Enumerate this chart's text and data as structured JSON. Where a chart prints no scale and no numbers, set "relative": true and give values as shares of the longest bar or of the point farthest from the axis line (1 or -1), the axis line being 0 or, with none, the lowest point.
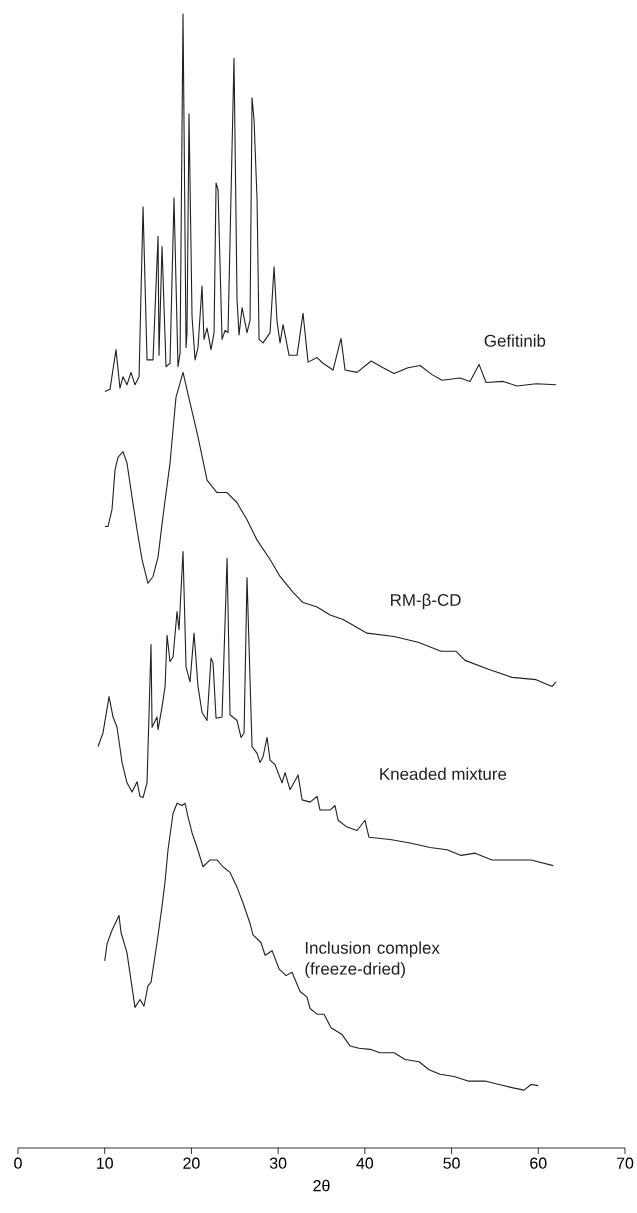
{
  "chart_data": {
    "type": "line",
    "relative": true,
    "xlabel": "2θ",
    "xlim": [
      0,
      70
    ],
    "xticks": [
      0,
      10,
      20,
      30,
      40,
      50,
      60,
      70
    ],
    "tick_labels": "x",
    "series": [
      {
        "name": "Gefitinib",
        "color": "#231f20",
        "x": [
          10.03,
          10.61,
          11.3,
          11.76,
          12.11,
          12.57,
          13.03,
          13.49,
          13.96,
          14.42,
          14.88,
          15.57,
          16.15,
          16.26,
          16.61,
          17.07,
          17.53,
          17.99,
          18.45,
          18.69,
          19.03,
          19.38,
          19.49,
          19.72,
          20.07,
          20.42,
          20.76,
          21.22,
          21.45,
          21.8,
          22.26,
          22.61,
          22.84,
          23.07,
          23.53,
          23.88,
          24.22,
          24.91,
          25.26,
          25.49,
          25.84,
          26.41,
          26.76,
          26.99,
          27.22,
          27.57,
          27.8,
          28.26,
          29.07,
          29.53,
          29.87,
          30.22,
          30.57,
          31.26,
          32.18,
          32.87,
          33.45,
          34.49,
          35.18,
          36.33,
          37.25,
          37.72,
          39.1,
          40.72,
          42.1,
          43.37,
          44.98,
          46.37,
          47.75,
          48.9,
          50.98,
          52.13,
          53.17,
          53.98,
          55.94,
          57.55,
          59.75,
          62.05
        ],
        "values": [
          0.667,
          0.669,
          0.704,
          0.67,
          0.68,
          0.673,
          0.684,
          0.673,
          0.68,
          0.83,
          0.695,
          0.695,
          0.804,
          0.699,
          0.795,
          0.689,
          0.692,
          0.838,
          0.689,
          0.701,
          1.0,
          0.706,
          0.719,
          0.912,
          0.733,
          0.695,
          0.706,
          0.76,
          0.713,
          0.723,
          0.704,
          0.719,
          0.851,
          0.845,
          0.713,
          0.721,
          0.719,
          0.961,
          0.748,
          0.717,
          0.741,
          0.719,
          0.73,
          0.926,
          0.907,
          0.836,
          0.713,
          0.71,
          0.719,
          0.777,
          0.729,
          0.71,
          0.726,
          0.699,
          0.699,
          0.736,
          0.693,
          0.697,
          0.692,
          0.686,
          0.714,
          0.686,
          0.684,
          0.694,
          0.688,
          0.683,
          0.688,
          0.69,
          0.682,
          0.677,
          0.679,
          0.676,
          0.691,
          0.675,
          0.676,
          0.672,
          0.674,
          0.673
        ]
      },
      {
        "name": "RM-β-CD",
        "color": "#231f20",
        "x": [
          10.03,
          10.38,
          10.84,
          11.19,
          11.53,
          12.11,
          12.57,
          13.15,
          13.73,
          14.3,
          14.99,
          15.57,
          16.15,
          16.72,
          17.53,
          18.22,
          19.03,
          19.84,
          20.76,
          21.8,
          22.95,
          24.11,
          25.26,
          26.41,
          27.57,
          29.07,
          30.22,
          31.72,
          32.87,
          34.49,
          35.99,
          37.49,
          39.1,
          40.25,
          43.37,
          46.14,
          48.79,
          50.52,
          51.56,
          54.33,
          56.98,
          59.75,
          61.59,
          62.05
        ],
        "values": [
          0.548,
          0.548,
          0.563,
          0.598,
          0.609,
          0.614,
          0.604,
          0.574,
          0.545,
          0.519,
          0.498,
          0.504,
          0.521,
          0.557,
          0.604,
          0.662,
          0.684,
          0.657,
          0.627,
          0.589,
          0.578,
          0.578,
          0.569,
          0.554,
          0.536,
          0.519,
          0.504,
          0.49,
          0.481,
          0.477,
          0.47,
          0.466,
          0.459,
          0.454,
          0.451,
          0.446,
          0.438,
          0.438,
          0.43,
          0.422,
          0.415,
          0.413,
          0.407,
          0.411
        ]
      },
      {
        "name": "Kneaded mixture",
        "color": "#231f20",
        "x": [
          9.23,
          9.8,
          10.5,
          10.96,
          11.42,
          12.0,
          12.57,
          13.15,
          13.73,
          14.07,
          14.42,
          14.88,
          15.34,
          15.46,
          16.03,
          16.15,
          16.61,
          16.96,
          17.19,
          17.53,
          17.88,
          18.34,
          18.57,
          19.03,
          19.38,
          19.84,
          20.3,
          20.76,
          21.22,
          21.8,
          22.26,
          22.49,
          22.84,
          23.53,
          24.11,
          24.45,
          25.26,
          25.72,
          26.07,
          26.41,
          26.99,
          27.57,
          27.91,
          28.26,
          28.72,
          29.07,
          29.64,
          30.45,
          30.8,
          31.37,
          32.3,
          32.76,
          33.68,
          34.49,
          34.83,
          35.99,
          36.56,
          36.91,
          37.95,
          39.1,
          40.02,
          40.48,
          42.91,
          45.21,
          47.52,
          49.48,
          51.1,
          52.71,
          54.67,
          56.75,
          59.17,
          61.71
        ],
        "values": [
          0.354,
          0.366,
          0.398,
          0.38,
          0.371,
          0.34,
          0.322,
          0.314,
          0.323,
          0.31,
          0.309,
          0.322,
          0.444,
          0.371,
          0.38,
          0.369,
          0.389,
          0.407,
          0.452,
          0.429,
          0.433,
          0.473,
          0.457,
          0.526,
          0.424,
          0.411,
          0.454,
          0.407,
          0.384,
          0.377,
          0.432,
          0.428,
          0.379,
          0.38,
          0.52,
          0.382,
          0.377,
          0.362,
          0.366,
          0.503,
          0.354,
          0.348,
          0.34,
          0.345,
          0.362,
          0.342,
          0.338,
          0.322,
          0.331,
          0.316,
          0.329,
          0.307,
          0.305,
          0.31,
          0.298,
          0.298,
          0.302,
          0.289,
          0.283,
          0.28,
          0.289,
          0.274,
          0.272,
          0.269,
          0.265,
          0.263,
          0.258,
          0.26,
          0.254,
          0.254,
          0.254,
          0.249
        ]
      },
      {
        "name": "Inclusion complex (freeze-dried)",
        "color": "#231f20",
        "x": [
          10.0,
          10.27,
          10.84,
          11.65,
          11.88,
          12.57,
          13.49,
          14.07,
          14.53,
          14.99,
          15.34,
          16.03,
          16.61,
          16.96,
          17.3,
          17.88,
          18.34,
          18.92,
          19.26,
          19.61,
          20.07,
          20.65,
          21.34,
          22.15,
          22.95,
          23.64,
          24.45,
          25.26,
          25.95,
          26.76,
          27.1,
          28.03,
          28.49,
          29.3,
          30.1,
          30.91,
          31.6,
          32.53,
          33.33,
          33.68,
          34.49,
          35.29,
          36.1,
          37.37,
          38.29,
          39.33,
          40.6,
          41.75,
          43.37,
          44.64,
          46.25,
          47.4,
          48.67,
          50.29,
          51.9,
          53.86,
          55.48,
          57.09,
          58.36,
          59.17,
          60.0
        ],
        "values": [
          0.165,
          0.18,
          0.192,
          0.205,
          0.19,
          0.172,
          0.124,
          0.131,
          0.125,
          0.143,
          0.146,
          0.181,
          0.213,
          0.235,
          0.263,
          0.295,
          0.304,
          0.302,
          0.304,
          0.292,
          0.278,
          0.265,
          0.248,
          0.254,
          0.254,
          0.248,
          0.243,
          0.23,
          0.216,
          0.198,
          0.188,
          0.181,
          0.17,
          0.174,
          0.158,
          0.152,
          0.155,
          0.138,
          0.133,
          0.123,
          0.118,
          0.118,
          0.106,
          0.1,
          0.09,
          0.088,
          0.087,
          0.084,
          0.084,
          0.078,
          0.076,
          0.069,
          0.065,
          0.063,
          0.059,
          0.059,
          0.056,
          0.053,
          0.051,
          0.056,
          0.055
        ]
      }
    ]
  }
}
